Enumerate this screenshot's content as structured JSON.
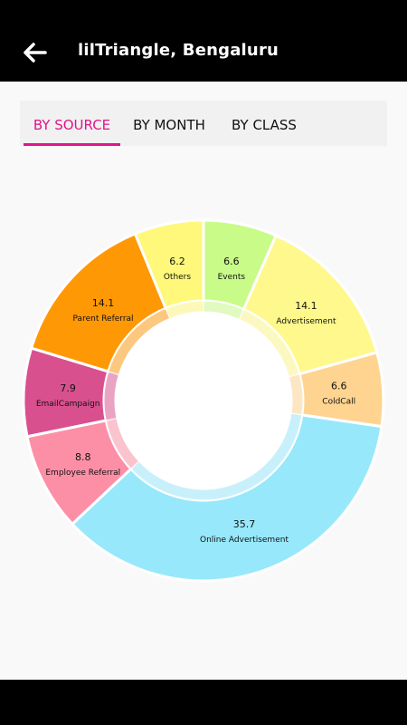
{
  "header": {
    "title": "lilTriangle, Bengaluru",
    "back_icon": "arrow-left-icon"
  },
  "tabs": [
    {
      "label": "BY SOURCE",
      "active": true
    },
    {
      "label": "BY MONTH",
      "active": false
    },
    {
      "label": "BY CLASS",
      "active": false
    }
  ],
  "colors": {
    "accent": "#e0158b",
    "appbar": "#000000"
  },
  "chart_data": {
    "type": "pie",
    "style": "donut",
    "start": "top",
    "direction": "clockwise",
    "slices": [
      {
        "label": "Events",
        "value": 6.6,
        "color": "#c8fb88"
      },
      {
        "label": "Advertisement",
        "value": 14.1,
        "color": "#fff88c"
      },
      {
        "label": "ColdCall",
        "value": 6.6,
        "color": "#ffd490"
      },
      {
        "label": "Online Advertisement",
        "value": 35.7,
        "color": "#98e8fb"
      },
      {
        "label": "Employee Referral",
        "value": 8.8,
        "color": "#fc8fa6"
      },
      {
        "label": "EmailCampaign",
        "value": 7.9,
        "color": "#d9508f"
      },
      {
        "label": "Parent Referral",
        "value": 14.1,
        "color": "#ff9805"
      },
      {
        "label": "Others",
        "value": 6.2,
        "color": "#fff87a"
      }
    ]
  }
}
